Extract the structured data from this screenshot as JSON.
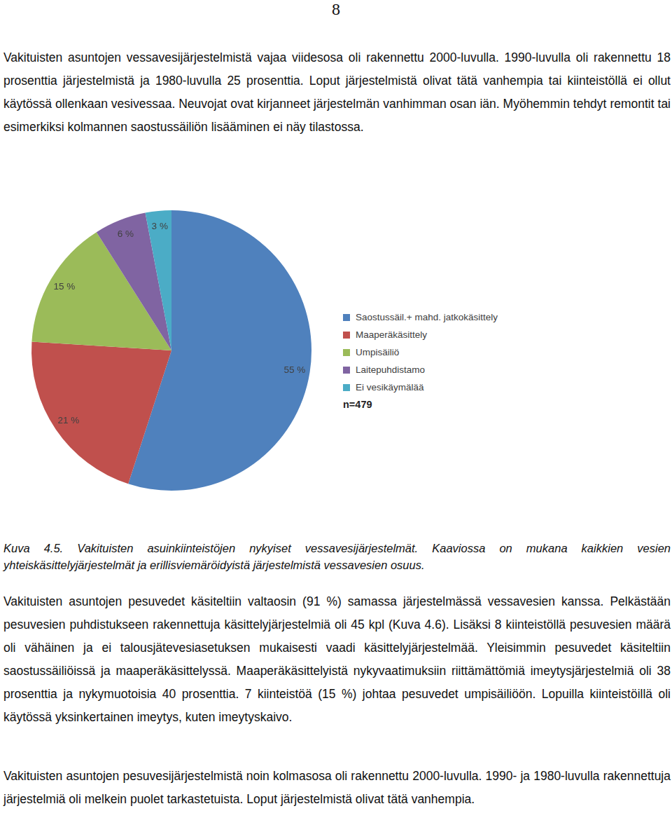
{
  "page_number": 8,
  "paragraphs_before": [
    "Vakituisten asuntojen vessavesijärjestelmistä vajaa viidesosa oli rakennettu 2000-luvulla. 1990-luvulla oli rakennettu 18 prosenttia järjestelmistä ja 1980-luvulla 25 prosenttia. Loput järjestelmistä olivat tätä vanhempia tai kiinteistöllä ei ollut käytössä ollenkaan vesivessaa. Neuvojat ovat kirjanneet järjestelmän vanhimman osan iän. Myöhemmin tehdyt remontit tai esimerkiksi kolmannen saostussäiliön lisääminen ei näy tilastossa."
  ],
  "chart_data": {
    "type": "pie",
    "categories": [
      "Saostussäil.+ mahd. jatkokäsittely",
      "Maaperäkäsittely",
      "Umpisäiliö",
      "Laitepuhdistamo",
      "Ei vesikäymälää"
    ],
    "values": [
      55,
      21,
      15,
      6,
      3
    ],
    "value_labels": [
      "55 %",
      "21 %",
      "15 %",
      "6 %",
      "3 %"
    ],
    "colors": [
      "#4f81bd",
      "#c0504d",
      "#9bbb59",
      "#8064a2",
      "#4bacc6"
    ],
    "data_labels": true,
    "legend": "right",
    "annotation": "n=479"
  },
  "caption": "Kuva 4.5. Vakituisten asuinkiinteistöjen nykyiset vessavesijärjestelmät. Kaaviossa on mukana kaikkien vesien yhteiskäsittelyjärjestelmät ja erillisviemäröidyistä järjestelmistä vessavesien osuus.",
  "paragraphs_after": [
    "Vakituisten asuntojen pesuvedet käsiteltiin valtaosin (91 %) samassa järjestelmässä vessavesien kanssa. Pelkästään pesuvesien puhdistukseen rakennettuja käsittelyjärjestelmiä oli 45 kpl (Kuva 4.6). Lisäksi 8 kiinteistöllä pesuvesien määrä oli vähäinen ja ei talousjätevesiasetuksen mukaisesti vaadi käsittelyjärjestelmää. Yleisimmin pesuvedet käsiteltiin saostussäiliöissä ja maaperäkäsittelyssä. Maaperäkäsittelyistä nykyvaatimuksiin riittämättömiä imeytysjärjestelmiä oli 38 prosenttia ja nykymuotoisia 40 prosenttia. 7 kiinteistöä (15 %) johtaa pesuvedet umpisäiliöön. Lopuilla kiinteistöillä oli käytössä yksinkertainen imeytys, kuten imeytyskaivo.",
    "Vakituisten asuntojen pesuvesijärjestelmistä noin kolmasosa oli rakennettu 2000-luvulla. 1990- ja 1980-luvulla rakennettuja järjestelmiä oli melkein puolet tarkastetuista. Loput järjestelmistä olivat tätä vanhempia."
  ]
}
